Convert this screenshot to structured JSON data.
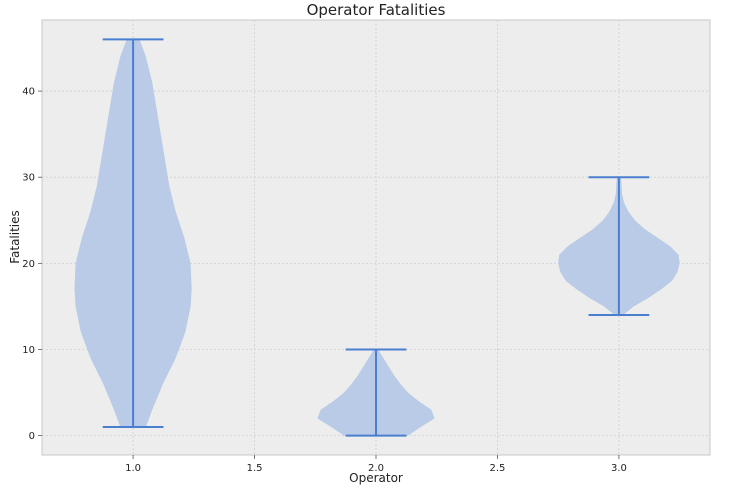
{
  "chart_data": {
    "type": "violin",
    "title": "Operator Fatalities",
    "xlabel": "Operator",
    "ylabel": "Fatalities",
    "xlim": [
      0.625,
      3.375
    ],
    "ylim": [
      -2.25,
      48.25
    ],
    "xticks": [
      1.0,
      1.5,
      2.0,
      2.5,
      3.0
    ],
    "xtick_labels": [
      "1.0",
      "1.5",
      "2.0",
      "2.5",
      "3.0"
    ],
    "yticks": [
      0,
      10,
      20,
      30,
      40
    ],
    "ytick_labels": [
      "0",
      "10",
      "20",
      "30",
      "40"
    ],
    "grid": true,
    "violins": [
      {
        "position": 1.0,
        "min": 1,
        "max": 46,
        "profile": [
          [
            1,
            0.12
          ],
          [
            3,
            0.18
          ],
          [
            6,
            0.28
          ],
          [
            9,
            0.4
          ],
          [
            12,
            0.49
          ],
          [
            15,
            0.54
          ],
          [
            17,
            0.55
          ],
          [
            20,
            0.54
          ],
          [
            23,
            0.48
          ],
          [
            26,
            0.4
          ],
          [
            29,
            0.34
          ],
          [
            32,
            0.3
          ],
          [
            35,
            0.26
          ],
          [
            38,
            0.22
          ],
          [
            41,
            0.18
          ],
          [
            44,
            0.12
          ],
          [
            46,
            0.06
          ]
        ]
      },
      {
        "position": 2.0,
        "min": 0,
        "max": 10,
        "profile": [
          [
            0,
            0.3
          ],
          [
            1,
            0.42
          ],
          [
            2,
            0.55
          ],
          [
            3,
            0.52
          ],
          [
            4,
            0.4
          ],
          [
            5,
            0.3
          ],
          [
            6,
            0.23
          ],
          [
            7,
            0.17
          ],
          [
            8,
            0.12
          ],
          [
            9,
            0.07
          ],
          [
            10,
            0.02
          ]
        ]
      },
      {
        "position": 3.0,
        "min": 14,
        "max": 30,
        "profile": [
          [
            14,
            0.04
          ],
          [
            15,
            0.14
          ],
          [
            16,
            0.28
          ],
          [
            17,
            0.4
          ],
          [
            18,
            0.5
          ],
          [
            19,
            0.55
          ],
          [
            20,
            0.57
          ],
          [
            21,
            0.56
          ],
          [
            22,
            0.48
          ],
          [
            23,
            0.36
          ],
          [
            24,
            0.24
          ],
          [
            25,
            0.15
          ],
          [
            26,
            0.09
          ],
          [
            27,
            0.05
          ],
          [
            28,
            0.03
          ],
          [
            30,
            0.02
          ]
        ]
      }
    ],
    "colors": {
      "body": "#b9cbe6",
      "lines": "#4a7fd0",
      "plot_bg": "#ededed",
      "grid": "#cfcfcf",
      "spine": "#c8c8c8"
    }
  }
}
